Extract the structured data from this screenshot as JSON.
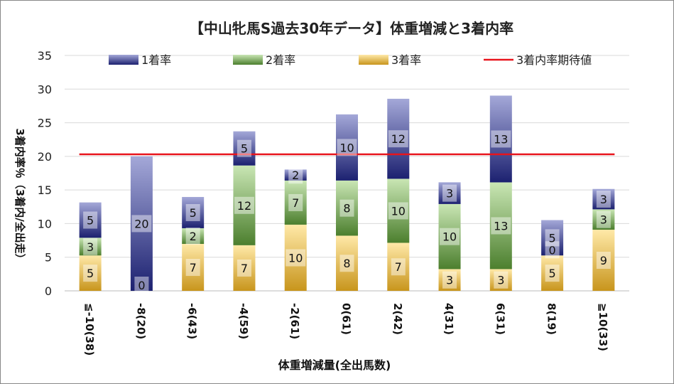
{
  "chart_data": {
    "type": "bar",
    "stacked": true,
    "title": "【中山牝馬S過去30年データ】体重増減と3着内率",
    "xlabel": "体重増減量(全出馬数)",
    "ylabel": "3着内率％（3着内/全出走）",
    "ylim": [
      0,
      35
    ],
    "yticks": [
      0,
      5,
      10,
      15,
      20,
      25,
      30,
      35
    ],
    "grid": true,
    "legend_position": "top",
    "categories": [
      "≦-10(38)",
      "-8(20)",
      "-6(43)",
      "-4(59)",
      "-2(61)",
      "0(61)",
      "2(42)",
      "4(31)",
      "6(31)",
      "8(19)",
      "≧10(33)"
    ],
    "series": [
      {
        "name": "3着率",
        "values": [
          5.26,
          0,
          6.98,
          6.78,
          9.84,
          8.2,
          7.14,
          3.23,
          3.23,
          5.26,
          9.09
        ],
        "labels": [
          "5",
          "0",
          "7",
          "7",
          "10",
          "8",
          "7",
          "3",
          "3",
          "5",
          "9"
        ],
        "color_light": "#ffe9a8",
        "color_dark": "#c8951c"
      },
      {
        "name": "2着率",
        "values": [
          2.63,
          0,
          2.33,
          11.86,
          6.56,
          8.2,
          9.52,
          9.68,
          12.9,
          0,
          3.03
        ],
        "labels": [
          "3",
          "",
          "2",
          "12",
          "7",
          "8",
          "10",
          "10",
          "13",
          "0",
          "3"
        ],
        "color_light": "#c9e6b4",
        "color_dark": "#4c7f2e"
      },
      {
        "name": "1着率",
        "values": [
          5.26,
          20,
          4.65,
          5.08,
          1.64,
          9.84,
          11.9,
          3.23,
          12.9,
          5.26,
          3.03
        ],
        "labels": [
          "5",
          "20",
          "5",
          "5",
          "2",
          "10",
          "12",
          "3",
          "13",
          "5",
          "3"
        ],
        "color_light": "#a4a8d8",
        "color_dark": "#1c2170"
      }
    ],
    "reference_line": {
      "name": "3着内率期待値",
      "value": 20.3,
      "color": "#e8141c"
    },
    "legend_order": [
      "1着率",
      "2着率",
      "3着率",
      "3着内率期待値"
    ]
  }
}
